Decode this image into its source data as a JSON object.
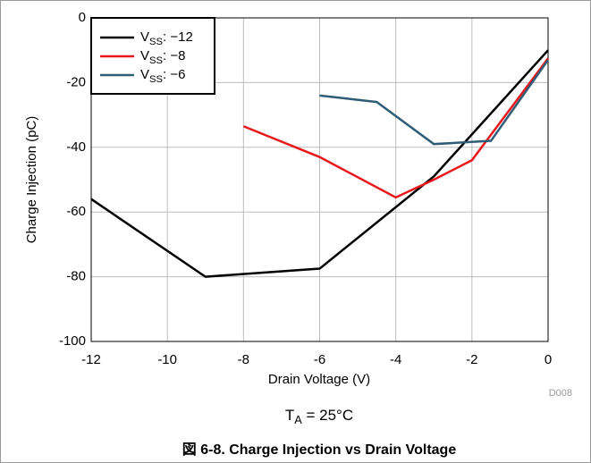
{
  "chart_data": {
    "type": "line",
    "xlabel": "Drain Voltage (V)",
    "ylabel": "Charge Injection (pC)",
    "annotation": "TA = 25°C",
    "source_id": "D008",
    "caption": "図 6-8. Charge Injection vs Drain Voltage",
    "xlim": [
      -12,
      0
    ],
    "xticks": [
      -12,
      -10,
      -8,
      -6,
      -4,
      -2,
      0
    ],
    "ylim": [
      -100,
      0
    ],
    "yticks": [
      -100,
      -80,
      -60,
      -40,
      -20,
      0
    ],
    "grid": true,
    "legend": "upper left",
    "series": [
      {
        "name": "VSS: −12",
        "color": "#000000",
        "x": [
          -12,
          -9,
          -6,
          -3,
          0
        ],
        "values": [
          -56,
          -80,
          -77.5,
          -49,
          -10
        ]
      },
      {
        "name": "VSS: −8",
        "color": "#e8191c",
        "x": [
          -8,
          -6,
          -4,
          -3,
          -2,
          0
        ],
        "values": [
          -33.5,
          -43,
          -55.5,
          -50,
          -44,
          -12.5
        ]
      },
      {
        "name": "VSS: −6",
        "color": "#2f5d76",
        "x": [
          -6,
          -4.5,
          -3,
          -1.5,
          0
        ],
        "values": [
          -24,
          -26,
          -39,
          -38,
          -13
        ]
      }
    ]
  }
}
